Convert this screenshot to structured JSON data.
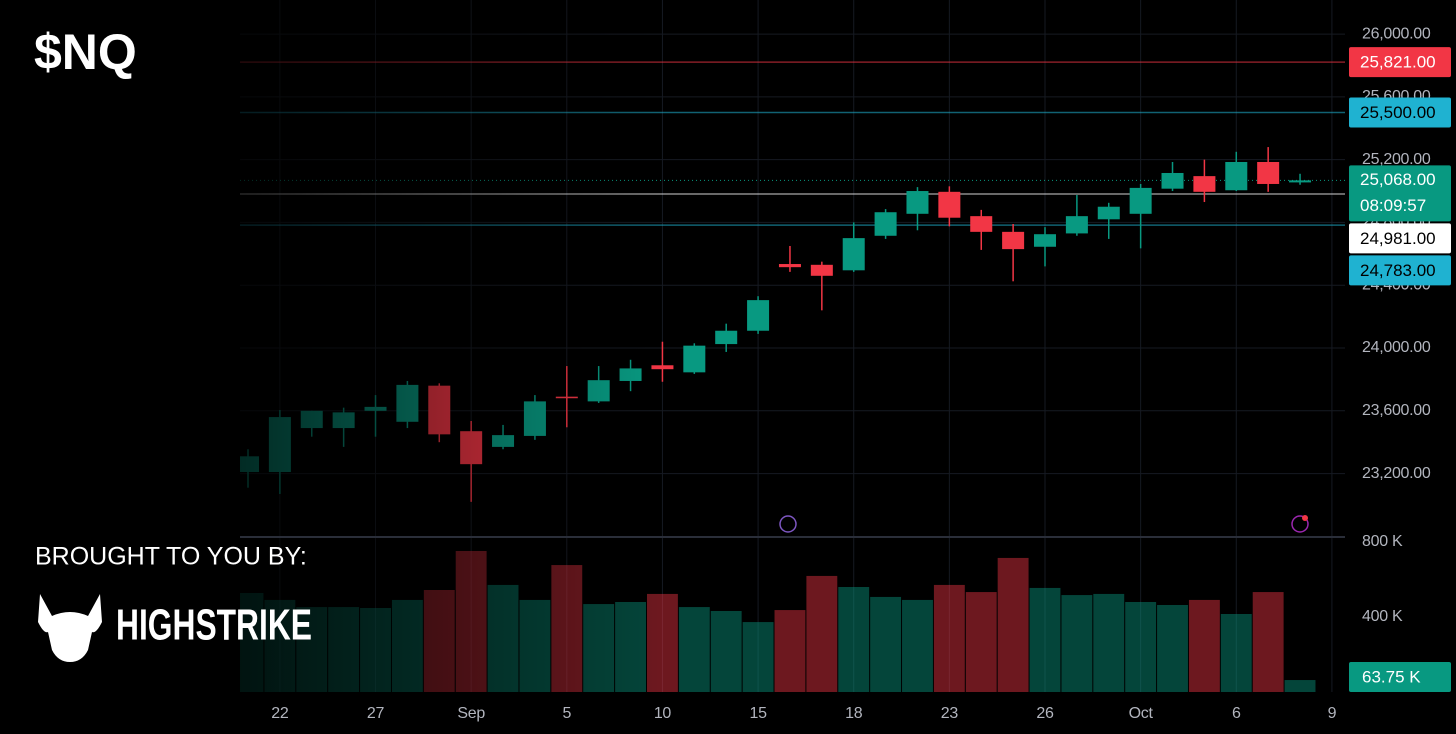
{
  "chart_data": {
    "type": "candlestick",
    "title": "$NQ",
    "categories": [
      null,
      "22",
      null,
      null,
      "27",
      null,
      null,
      "Sep",
      null,
      null,
      "5",
      null,
      null,
      "10",
      null,
      null,
      "15",
      null,
      null,
      "18",
      null,
      null,
      "23",
      null,
      null,
      "26",
      null,
      null,
      "Oct",
      null,
      null,
      "6",
      null,
      null,
      "9"
    ],
    "open": [
      23210,
      23210,
      23490,
      23490,
      23600,
      23530,
      23760,
      23470,
      23370,
      23440,
      23690,
      23660,
      23790,
      23890,
      23845,
      24025,
      24110,
      24535,
      24530,
      24495,
      24715,
      24855,
      24995,
      24840,
      24740,
      24645,
      24730,
      24820,
      24855,
      25015,
      25095,
      25005,
      25185,
      25055,
      null
    ],
    "high": [
      23355,
      23605,
      23600,
      23620,
      23700,
      23790,
      23775,
      23535,
      23510,
      23700,
      23885,
      23885,
      23925,
      24040,
      24030,
      24155,
      24330,
      24650,
      24550,
      24800,
      24885,
      25025,
      25030,
      24880,
      24790,
      24770,
      24975,
      24925,
      25045,
      25185,
      25200,
      25250,
      25280,
      25110,
      null
    ],
    "low": [
      23110,
      23070,
      23435,
      23370,
      23435,
      23490,
      23400,
      23020,
      23355,
      23415,
      23495,
      23650,
      23725,
      23785,
      23835,
      23975,
      24090,
      24485,
      24240,
      24485,
      24695,
      24750,
      24775,
      24625,
      24425,
      24520,
      24715,
      24695,
      24635,
      25000,
      24930,
      25000,
      24995,
      25040,
      null
    ],
    "close": [
      23310,
      23560,
      23600,
      23590,
      23625,
      23765,
      23450,
      23260,
      23445,
      23660,
      23680,
      23795,
      23870,
      23865,
      24015,
      24110,
      24305,
      24515,
      24460,
      24700,
      24865,
      25000,
      24830,
      24740,
      24630,
      24725,
      24840,
      24900,
      25020,
      25115,
      24995,
      25185,
      25045,
      25068,
      null
    ],
    "volume": [
      528000,
      491000,
      453000,
      453000,
      448000,
      491000,
      544000,
      752000,
      571000,
      491000,
      677000,
      469000,
      480000,
      523000,
      453000,
      432000,
      373000,
      437000,
      619000,
      560000,
      507000,
      491000,
      571000,
      533000,
      715000,
      555000,
      517000,
      523000,
      480000,
      464000,
      491000,
      416000,
      533000,
      63750,
      null
    ],
    "up_color": "#089981",
    "down_color": "#f23645",
    "ylim": [
      22796,
      26217
    ],
    "yticks": [
      {
        "value": 26000,
        "label": "26,000.00"
      },
      {
        "value": 25600,
        "label": "25,600.00"
      },
      {
        "value": 25200,
        "label": "25,200.00"
      },
      {
        "value": 24800,
        "label": "24,800.00"
      },
      {
        "value": 24400,
        "label": "24,400.00"
      },
      {
        "value": 24000,
        "label": "24,000.00"
      },
      {
        "value": 23600,
        "label": "23,600.00"
      },
      {
        "value": 23200,
        "label": "23,200.00"
      }
    ],
    "volume_ylim": [
      0,
      800000
    ],
    "volume_ticks": [
      {
        "value": 400000,
        "label": "400 K"
      },
      {
        "value": 800000,
        "label": "800 K"
      }
    ],
    "grid": true,
    "levels": [
      {
        "value": 25821,
        "label": "25,821.00",
        "color": "#f23645",
        "text_color": "#ffffff"
      },
      {
        "value": 25500,
        "label": "25,500.00",
        "color": "#1fb2d1",
        "text_color": "#000000"
      },
      {
        "value": 24981,
        "label": "24,981.00",
        "color": "#ffffff",
        "text_color": "#000000"
      },
      {
        "value": 24783,
        "label": "24,783.00",
        "color": "#1fb2d1",
        "text_color": "#000000"
      }
    ],
    "last_price": {
      "value": 25068,
      "label": "25,068.00",
      "countdown": "08:09:57",
      "color": "#089981"
    },
    "last_volume": {
      "value": 63750,
      "label": "63.75 K",
      "color": "#089981"
    }
  },
  "branding": {
    "tagline": "BROUGHT TO YOU BY:",
    "name": "HIGHSTRIKE"
  }
}
